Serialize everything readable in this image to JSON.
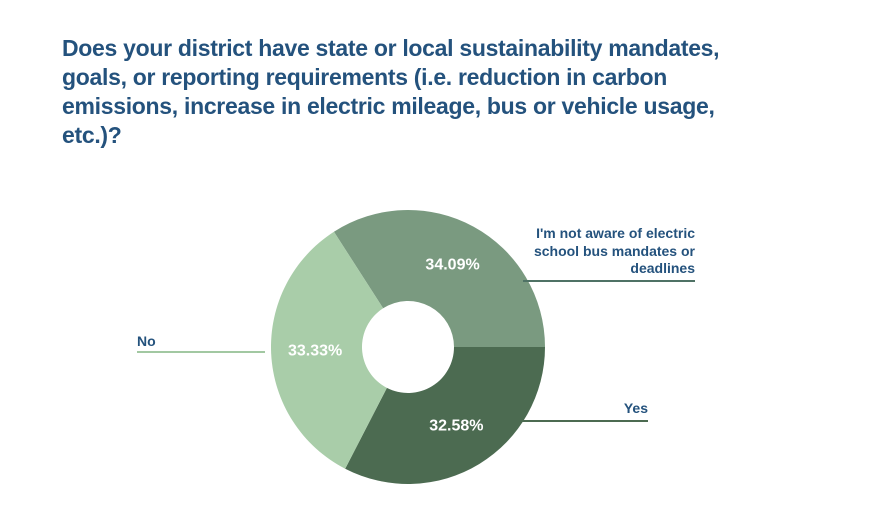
{
  "title": "Does your district have state or local sustainability mandates, goals, or reporting requirements (i.e. reduction in carbon emissions, increase in electric mileage, bus or vehicle usage, etc.)?",
  "colors": {
    "title_text": "#24527D",
    "callout_text": "#24527D",
    "slice_value_text": "#ffffff",
    "background": "#ffffff"
  },
  "chart_data": {
    "type": "pie",
    "donut": true,
    "inner_radius_ratio": 0.34,
    "title": "Does your district have state or local sustainability mandates, goals, or reporting requirements (i.e. reduction in carbon emissions, increase in electric mileage, bus or vehicle usage, etc.)?",
    "legend_position": "callout-labels",
    "start_orientation": "first slice ends at 3 o'clock, slices proceed clockwise",
    "slices": [
      {
        "id": "not-aware",
        "label": "I'm not aware of electric school bus mandates or deadlines",
        "value": 34.09,
        "display": "34.09%",
        "color": "#7A9A80",
        "leader_line_color": "#4F7265"
      },
      {
        "id": "yes",
        "label": "Yes",
        "value": 32.58,
        "display": "32.58%",
        "color": "#4C6B51",
        "leader_line_color": "#4C6B51"
      },
      {
        "id": "no",
        "label": "No",
        "value": 33.33,
        "display": "33.33%",
        "color": "#A9CDA9",
        "leader_line_color": "#A2C8A2"
      }
    ]
  }
}
